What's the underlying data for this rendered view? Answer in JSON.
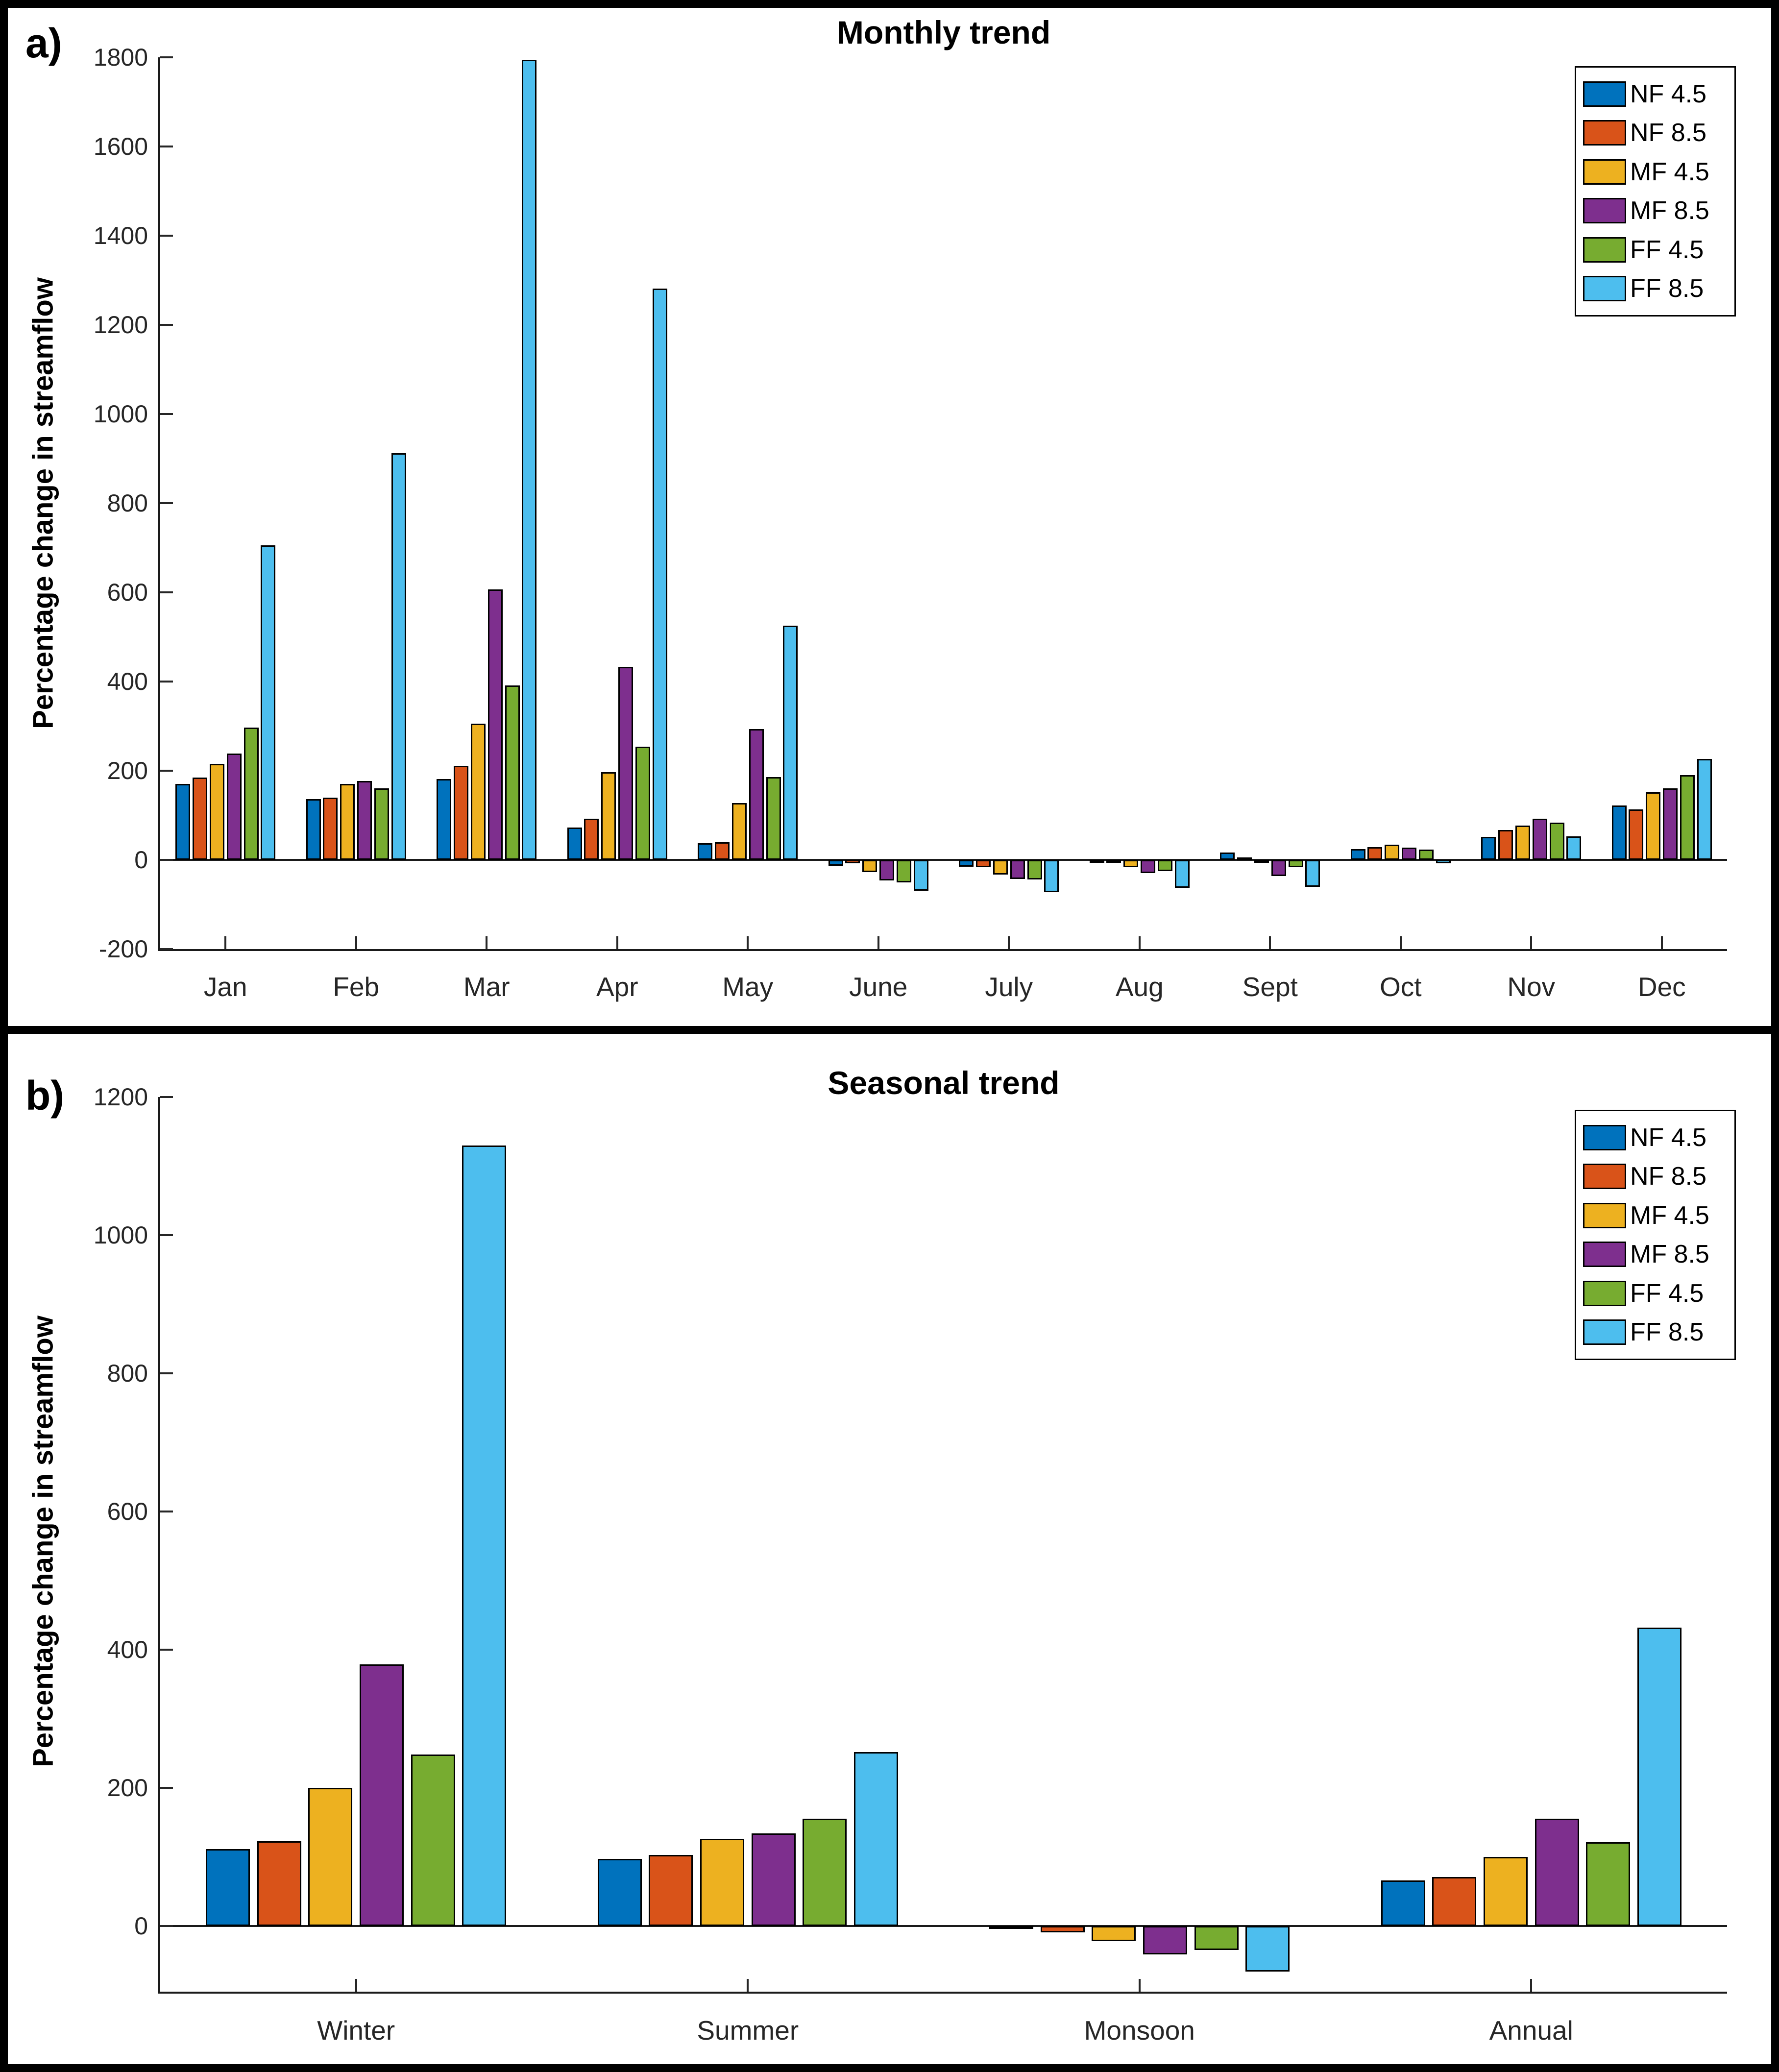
{
  "figure": {
    "background": "#ffffff",
    "frame_color": "#000000",
    "axis_color": "#262626",
    "series_colors": {
      "NF 4.5": "#0072BD",
      "NF 8.5": "#D95319",
      "MF 4.5": "#EDB120",
      "MF 8.5": "#7E2F8E",
      "FF 4.5": "#77AC30",
      "FF 8.5": "#4DBEEE"
    }
  },
  "chart_data": [
    {
      "type": "bar",
      "panel_label": "a)",
      "title": "Monthly trend",
      "ylabel": "Percentage change in streamflow",
      "xlabel": "",
      "grid": false,
      "legend_position": "top-right",
      "ylim": [
        -200,
        1800
      ],
      "yticks": [
        1800,
        1600,
        1400,
        1200,
        1000,
        800,
        600,
        400,
        200,
        0,
        -200
      ],
      "categories": [
        "Jan",
        "Feb",
        "Mar",
        "Apr",
        "May",
        "June",
        "July",
        "Aug",
        "Sept",
        "Oct",
        "Nov",
        "Dec"
      ],
      "series": [
        {
          "name": "NF 4.5",
          "color": "#0072BD",
          "values": [
            170,
            136,
            181,
            73,
            37,
            -13,
            -15,
            -3,
            16,
            24,
            52,
            122
          ]
        },
        {
          "name": "NF 8.5",
          "color": "#D95319",
          "values": [
            185,
            140,
            211,
            92,
            40,
            -8,
            -16,
            -5,
            6,
            29,
            67,
            113
          ]
        },
        {
          "name": "MF 4.5",
          "color": "#EDB120",
          "values": [
            215,
            170,
            305,
            197,
            128,
            -28,
            -33,
            -16,
            -5,
            34,
            77,
            152
          ]
        },
        {
          "name": "MF 8.5",
          "color": "#7E2F8E",
          "values": [
            238,
            177,
            607,
            433,
            293,
            -46,
            -43,
            -30,
            -36,
            27,
            92,
            160
          ]
        },
        {
          "name": "FF 4.5",
          "color": "#77AC30",
          "values": [
            297,
            160,
            391,
            254,
            186,
            -50,
            -44,
            -25,
            -17,
            23,
            83,
            190
          ]
        },
        {
          "name": "FF 8.5",
          "color": "#4DBEEE",
          "values": [
            705,
            912,
            1795,
            1281,
            525,
            -69,
            -72,
            -63,
            -60,
            -8,
            53,
            226
          ]
        }
      ]
    },
    {
      "type": "bar",
      "panel_label": "b)",
      "title": "Seasonal trend",
      "ylabel": "Percentage change in streamflow",
      "xlabel": "",
      "grid": false,
      "legend_position": "top-right",
      "ylim": [
        -95,
        1200
      ],
      "yticks": [
        1200,
        1000,
        800,
        600,
        400,
        200,
        0
      ],
      "categories": [
        "Winter",
        "Summer",
        "Monsoon",
        "Annual"
      ],
      "series": [
        {
          "name": "NF 4.5",
          "color": "#0072BD",
          "values": [
            111,
            97,
            -4,
            66
          ]
        },
        {
          "name": "NF 8.5",
          "color": "#D95319",
          "values": [
            123,
            103,
            -9,
            71
          ]
        },
        {
          "name": "MF 4.5",
          "color": "#EDB120",
          "values": [
            200,
            126,
            -22,
            100
          ]
        },
        {
          "name": "MF 8.5",
          "color": "#7E2F8E",
          "values": [
            379,
            134,
            -41,
            155
          ]
        },
        {
          "name": "FF 4.5",
          "color": "#77AC30",
          "values": [
            248,
            155,
            -35,
            121
          ]
        },
        {
          "name": "FF 8.5",
          "color": "#4DBEEE",
          "values": [
            1130,
            252,
            -66,
            432
          ]
        }
      ]
    }
  ]
}
